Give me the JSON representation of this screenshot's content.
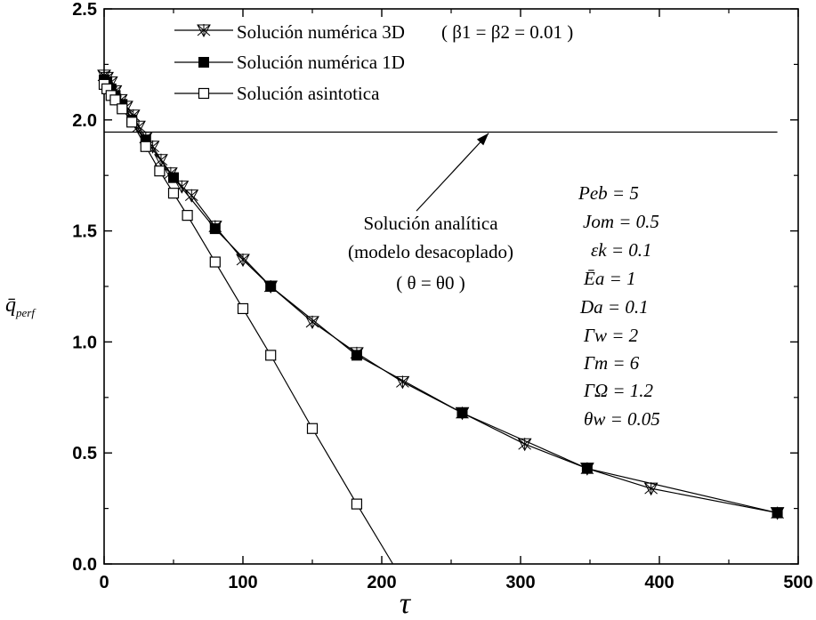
{
  "chart_data": {
    "type": "line",
    "xlabel": "τ",
    "ylabel": "q̄",
    "ylabel_sub": "perf",
    "xlim": [
      0,
      500
    ],
    "ylim": [
      0,
      2.5
    ],
    "xticks": [
      0,
      100,
      200,
      300,
      400,
      500
    ],
    "yticks": [
      0.0,
      0.5,
      1.0,
      1.5,
      2.0,
      2.5
    ],
    "xtick_labels": [
      "0",
      "100",
      "200",
      "300",
      "400",
      "500"
    ],
    "ytick_labels": [
      "0.0",
      "0.5",
      "1.0",
      "1.5",
      "2.0",
      "2.5"
    ],
    "grid": false,
    "series": [
      {
        "name": "Solución numérica 3D",
        "marker": "star-triangle",
        "x": [
          0,
          2,
          5,
          8,
          12,
          16,
          21,
          25,
          30,
          35,
          41,
          48,
          56,
          63,
          80,
          100,
          120,
          150,
          182,
          215,
          258,
          303,
          348,
          394,
          485
        ],
        "y": [
          2.2,
          2.19,
          2.17,
          2.13,
          2.09,
          2.06,
          2.02,
          1.97,
          1.92,
          1.88,
          1.82,
          1.76,
          1.7,
          1.66,
          1.52,
          1.37,
          1.25,
          1.09,
          0.95,
          0.82,
          0.68,
          0.54,
          0.43,
          0.34,
          0.23
        ]
      },
      {
        "name": "Solución numérica 1D",
        "marker": "filled-square",
        "x": [
          0,
          2,
          5,
          8,
          13,
          20,
          30,
          50,
          80,
          120,
          182,
          258,
          348,
          485
        ],
        "y": [
          2.18,
          2.17,
          2.14,
          2.11,
          2.07,
          2.0,
          1.91,
          1.74,
          1.51,
          1.25,
          0.94,
          0.68,
          0.43,
          0.23
        ]
      },
      {
        "name": "Solución asintotica",
        "marker": "open-square",
        "x": [
          0,
          2,
          5,
          8,
          13,
          20,
          30,
          40,
          50,
          60,
          80,
          100,
          120,
          150,
          182,
          208
        ],
        "y": [
          2.16,
          2.14,
          2.11,
          2.09,
          2.05,
          1.99,
          1.88,
          1.77,
          1.67,
          1.57,
          1.36,
          1.15,
          0.94,
          0.61,
          0.27,
          0.0
        ]
      }
    ],
    "reference_line": {
      "y": 1.945,
      "x_range": [
        0,
        485
      ]
    },
    "legend": {
      "position": "top",
      "entries": [
        {
          "label": "Solución numérica 3D",
          "extra": "( β1 = β2 = 0.01 )"
        },
        {
          "label": "Solución numérica 1D",
          "extra": ""
        },
        {
          "label": "Solución asintotica",
          "extra": ""
        }
      ]
    },
    "annotation": {
      "lines": [
        "Solución analítica",
        "(modelo desacoplado)",
        "( θ = θ0 )"
      ],
      "arrow_to": {
        "x": 277,
        "y": 1.94
      },
      "arrow_from": {
        "x": 225,
        "y": 1.59
      }
    },
    "parameters": [
      "Peb = 5",
      "Jom = 0.5",
      "εk = 0.1",
      "Ēa = 1",
      "Da = 0.1",
      "Γw = 2",
      "Γm = 6",
      "ΓΩ = 1.2",
      "θw = 0.05"
    ]
  }
}
